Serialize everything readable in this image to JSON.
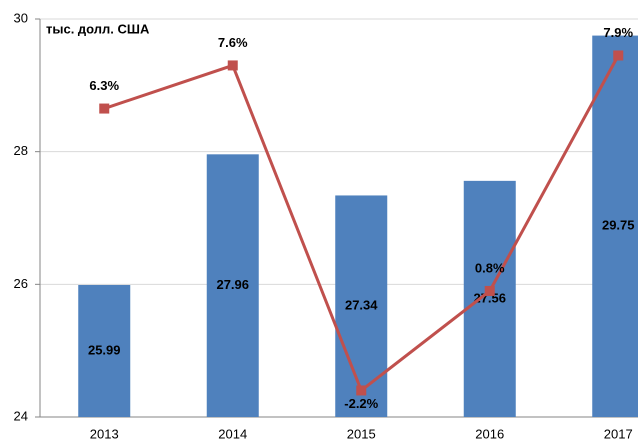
{
  "chart_data": {
    "type": "bar_line",
    "y_label": "тыс. долл. США",
    "categories": [
      "2013",
      "2014",
      "2015",
      "2016",
      "2017"
    ],
    "series": [
      {
        "type": "bar",
        "color": "#4f81bd",
        "values": [
          25.99,
          27.96,
          27.34,
          27.56,
          29.75
        ]
      },
      {
        "type": "line",
        "axis": "y2",
        "color": "#c0504d",
        "values": [
          6.3,
          7.6,
          -2.2,
          0.8,
          7.9
        ],
        "value_labels": [
          "6.3%",
          "7.6%",
          "-2.2%",
          "0.8%",
          "7.9%"
        ]
      }
    ],
    "ylim": [
      24,
      30
    ],
    "yticks": [
      24,
      26,
      28,
      30
    ],
    "y2lim": [
      -3,
      9
    ],
    "grid": true
  }
}
